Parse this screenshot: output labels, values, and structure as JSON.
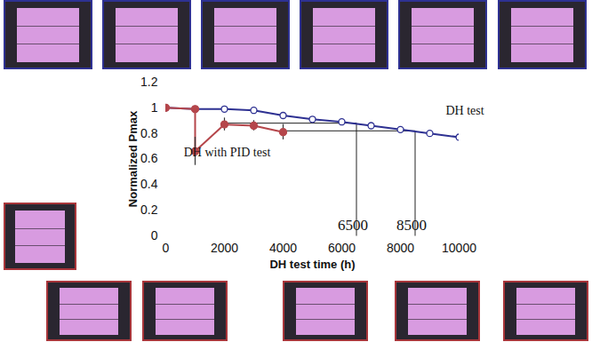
{
  "chart_data": {
    "type": "line",
    "x_label": "DH test time (h)",
    "y_label": "Normalized Pmax",
    "xlim": [
      0,
      10000
    ],
    "xticks": [
      0,
      2000,
      4000,
      6000,
      8000,
      10000
    ],
    "ylim": [
      0,
      1.2
    ],
    "yticks": [
      0,
      0.2,
      0.4,
      0.6,
      0.8,
      1,
      1.2
    ],
    "grid": false,
    "series": [
      {
        "name": "DH test",
        "color": "#2e3192",
        "marker": "open_circle",
        "x": [
          0,
          1000,
          2000,
          3000,
          4000,
          5000,
          6000,
          7000,
          8000,
          9000,
          10000
        ],
        "values": [
          1.0,
          0.99,
          0.99,
          0.98,
          0.94,
          0.91,
          0.89,
          0.86,
          0.83,
          0.8,
          0.77
        ]
      },
      {
        "name": "DH with PID test",
        "color": "#b5464b",
        "marker": "circle",
        "x": [
          0,
          1000,
          1000,
          2000,
          3000,
          4000
        ],
        "values": [
          1.0,
          0.99,
          0.66,
          0.87,
          0.86,
          0.81
        ],
        "errors": [
          0,
          0,
          0.11,
          0.05,
          0.04,
          0.06
        ]
      }
    ],
    "annotations": [
      {
        "label": "6500",
        "x": 6500,
        "y": 0.88,
        "x_start": 2000
      },
      {
        "label": "8500",
        "x": 8500,
        "y": 0.82,
        "x_start": 4000
      }
    ]
  }
}
